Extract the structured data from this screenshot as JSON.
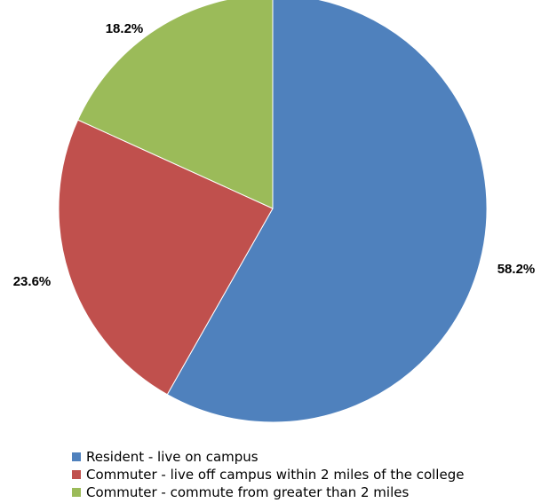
{
  "chart_data": {
    "type": "pie",
    "title": "",
    "legend_position": "bottom",
    "slices": [
      {
        "name": "Resident - live on campus",
        "value": 58.2,
        "label": "58.2%",
        "color": "#4F81BD"
      },
      {
        "name": "Commuter - live off campus within 2 miles of the college",
        "value": 23.6,
        "label": "23.6%",
        "color": "#C0504D"
      },
      {
        "name": "Commuter - commute from greater than 2 miles",
        "value": 18.2,
        "label": "18.2%",
        "color": "#9BBB59"
      }
    ]
  }
}
